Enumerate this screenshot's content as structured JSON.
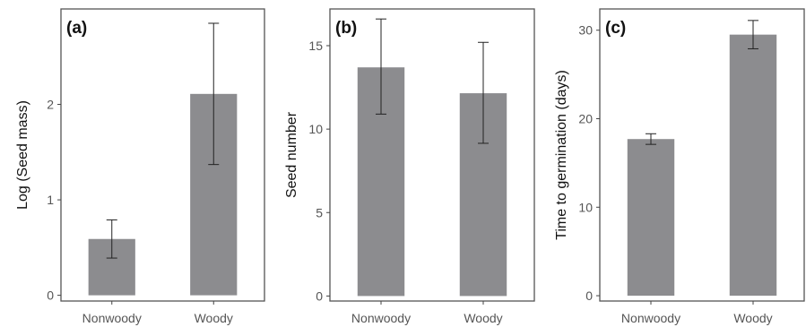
{
  "chart_data": [
    {
      "type": "bar",
      "panel_label": "(a)",
      "categories": [
        "Nonwoody",
        "Woody"
      ],
      "values": [
        0.59,
        2.11
      ],
      "error_low": [
        0.39,
        1.37
      ],
      "error_high": [
        0.79,
        2.85
      ],
      "ylabel": "Log (Seed mass)",
      "ylim": [
        -0.06,
        3.0
      ],
      "yticks": [
        0,
        1,
        2
      ],
      "ytick_labels": [
        "0",
        "1",
        "2"
      ],
      "grid": false
    },
    {
      "type": "bar",
      "panel_label": "(b)",
      "categories": [
        "Nonwoody",
        "Woody"
      ],
      "values": [
        13.7,
        12.15
      ],
      "error_low": [
        10.9,
        9.15
      ],
      "error_high": [
        16.6,
        15.2
      ],
      "ylabel": "Seed number",
      "ylim": [
        -0.3,
        17.2
      ],
      "yticks": [
        0,
        5,
        10,
        15
      ],
      "ytick_labels": [
        "0",
        "5",
        "10",
        "15"
      ],
      "grid": false
    },
    {
      "type": "bar",
      "panel_label": "(c)",
      "categories": [
        "Nonwoody",
        "Woody"
      ],
      "values": [
        17.7,
        29.5
      ],
      "error_low": [
        17.1,
        27.9
      ],
      "error_high": [
        18.3,
        31.1
      ],
      "ylabel": "Time to germination (days)",
      "ylim": [
        -0.6,
        32.4
      ],
      "yticks": [
        0,
        10,
        20,
        30
      ],
      "ytick_labels": [
        "0",
        "10",
        "20",
        "30"
      ],
      "grid": false
    }
  ]
}
